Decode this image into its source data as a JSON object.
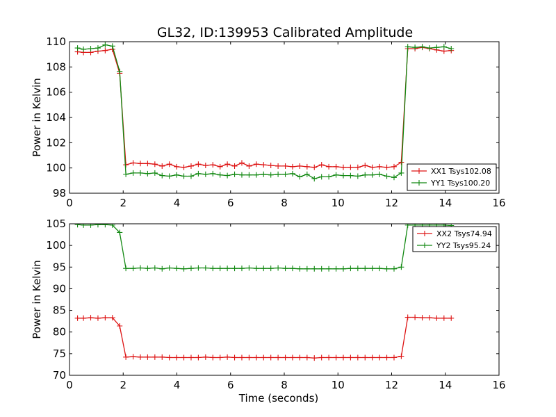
{
  "title": "GL32, ID:139953 Calibrated Amplitude",
  "colors": {
    "xx": "#dd1111",
    "yy": "#118811"
  },
  "chart_data": [
    {
      "type": "line",
      "xlabel": "",
      "ylabel": "Power in Kelvin",
      "xlim": [
        0,
        16
      ],
      "ylim": [
        98,
        110
      ],
      "xticks": [
        0,
        2,
        4,
        6,
        8,
        10,
        12,
        14,
        16
      ],
      "yticks": [
        98,
        100,
        102,
        104,
        106,
        108,
        110
      ],
      "legend_position": "lower-right",
      "series": [
        {
          "name": "XX1 Tsys102.08",
          "color_key": "xx",
          "x": [
            0.3,
            0.52,
            0.79,
            1.06,
            1.33,
            1.6,
            1.87,
            2.1,
            2.37,
            2.64,
            2.91,
            3.18,
            3.45,
            3.72,
            3.99,
            4.26,
            4.53,
            4.8,
            5.07,
            5.34,
            5.61,
            5.88,
            6.15,
            6.42,
            6.69,
            6.96,
            7.23,
            7.5,
            7.77,
            8.04,
            8.31,
            8.58,
            8.85,
            9.12,
            9.39,
            9.66,
            9.93,
            10.2,
            10.47,
            10.74,
            11.01,
            11.28,
            11.55,
            11.82,
            12.09,
            12.36,
            12.6,
            12.87,
            13.14,
            13.41,
            13.68,
            13.95,
            14.22
          ],
          "y": [
            109.2,
            109.15,
            109.15,
            109.25,
            109.3,
            109.4,
            107.5,
            100.25,
            100.4,
            100.35,
            100.35,
            100.3,
            100.15,
            100.3,
            100.1,
            100.05,
            100.15,
            100.3,
            100.2,
            100.25,
            100.1,
            100.3,
            100.15,
            100.4,
            100.15,
            100.3,
            100.25,
            100.2,
            100.15,
            100.15,
            100.1,
            100.15,
            100.1,
            100.05,
            100.25,
            100.1,
            100.1,
            100.05,
            100.05,
            100.05,
            100.2,
            100.05,
            100.1,
            100.05,
            100.1,
            100.45,
            109.45,
            109.45,
            109.55,
            109.45,
            109.35,
            109.25,
            109.3
          ]
        },
        {
          "name": "YY1 Tsys100.20",
          "color_key": "yy",
          "x": [
            0.3,
            0.52,
            0.79,
            1.06,
            1.33,
            1.6,
            1.87,
            2.1,
            2.37,
            2.64,
            2.91,
            3.18,
            3.45,
            3.72,
            3.99,
            4.26,
            4.53,
            4.8,
            5.07,
            5.34,
            5.61,
            5.88,
            6.15,
            6.42,
            6.69,
            6.96,
            7.23,
            7.5,
            7.77,
            8.04,
            8.31,
            8.58,
            8.85,
            9.12,
            9.39,
            9.66,
            9.93,
            10.2,
            10.47,
            10.74,
            11.01,
            11.28,
            11.55,
            11.82,
            12.09,
            12.36,
            12.6,
            12.87,
            13.14,
            13.41,
            13.68,
            13.95,
            14.22
          ],
          "y": [
            109.5,
            109.4,
            109.45,
            109.5,
            109.75,
            109.65,
            107.65,
            99.5,
            99.6,
            99.6,
            99.55,
            99.6,
            99.4,
            99.35,
            99.45,
            99.35,
            99.35,
            99.55,
            99.5,
            99.55,
            99.45,
            99.4,
            99.5,
            99.45,
            99.45,
            99.45,
            99.5,
            99.45,
            99.5,
            99.5,
            99.55,
            99.3,
            99.5,
            99.15,
            99.3,
            99.3,
            99.45,
            99.4,
            99.4,
            99.35,
            99.45,
            99.45,
            99.5,
            99.35,
            99.25,
            99.6,
            109.6,
            109.55,
            109.6,
            109.5,
            109.55,
            109.6,
            109.45
          ]
        }
      ]
    },
    {
      "type": "line",
      "xlabel": "Time (seconds)",
      "ylabel": "Power in Kelvin",
      "xlim": [
        0,
        16
      ],
      "ylim": [
        70,
        105
      ],
      "xticks": [
        0,
        2,
        4,
        6,
        8,
        10,
        12,
        14,
        16
      ],
      "yticks": [
        70,
        75,
        80,
        85,
        90,
        95,
        100,
        105
      ],
      "legend_position": "upper-right",
      "series": [
        {
          "name": "XX2 Tsys74.94",
          "color_key": "xx",
          "x": [
            0.3,
            0.52,
            0.79,
            1.06,
            1.33,
            1.6,
            1.87,
            2.1,
            2.37,
            2.64,
            2.91,
            3.18,
            3.45,
            3.72,
            3.99,
            4.26,
            4.53,
            4.8,
            5.07,
            5.34,
            5.61,
            5.88,
            6.15,
            6.42,
            6.69,
            6.96,
            7.23,
            7.5,
            7.77,
            8.04,
            8.31,
            8.58,
            8.85,
            9.12,
            9.39,
            9.66,
            9.93,
            10.2,
            10.47,
            10.74,
            11.01,
            11.28,
            11.55,
            11.82,
            12.09,
            12.36,
            12.6,
            12.87,
            13.14,
            13.41,
            13.68,
            13.95,
            14.22
          ],
          "y": [
            83.2,
            83.2,
            83.3,
            83.2,
            83.3,
            83.3,
            81.4,
            74.2,
            74.3,
            74.2,
            74.2,
            74.2,
            74.2,
            74.1,
            74.1,
            74.1,
            74.1,
            74.1,
            74.2,
            74.1,
            74.1,
            74.2,
            74.1,
            74.1,
            74.1,
            74.1,
            74.1,
            74.1,
            74.1,
            74.1,
            74.1,
            74.1,
            74.1,
            74.0,
            74.1,
            74.1,
            74.1,
            74.1,
            74.1,
            74.1,
            74.1,
            74.1,
            74.1,
            74.1,
            74.1,
            74.4,
            83.4,
            83.4,
            83.3,
            83.3,
            83.2,
            83.2,
            83.2
          ]
        },
        {
          "name": "YY2 Tsys95.24",
          "color_key": "yy",
          "x": [
            0.3,
            0.52,
            0.79,
            1.06,
            1.33,
            1.6,
            1.87,
            2.1,
            2.37,
            2.64,
            2.91,
            3.18,
            3.45,
            3.72,
            3.99,
            4.26,
            4.53,
            4.8,
            5.07,
            5.34,
            5.61,
            5.88,
            6.15,
            6.42,
            6.69,
            6.96,
            7.23,
            7.5,
            7.77,
            8.04,
            8.31,
            8.58,
            8.85,
            9.12,
            9.39,
            9.66,
            9.93,
            10.2,
            10.47,
            10.74,
            11.01,
            11.28,
            11.55,
            11.82,
            12.09,
            12.36,
            12.6,
            12.87,
            13.14,
            13.41,
            13.68,
            13.95,
            14.22
          ],
          "y": [
            104.8,
            104.7,
            104.7,
            104.8,
            104.8,
            104.7,
            103.0,
            94.7,
            94.7,
            94.8,
            94.7,
            94.8,
            94.6,
            94.8,
            94.7,
            94.6,
            94.7,
            94.8,
            94.8,
            94.7,
            94.7,
            94.7,
            94.7,
            94.7,
            94.8,
            94.7,
            94.7,
            94.7,
            94.8,
            94.7,
            94.7,
            94.6,
            94.6,
            94.6,
            94.6,
            94.6,
            94.6,
            94.6,
            94.7,
            94.7,
            94.7,
            94.7,
            94.7,
            94.6,
            94.6,
            95.0,
            104.7,
            104.7,
            104.7,
            104.7,
            104.7,
            104.7,
            104.6
          ]
        }
      ]
    }
  ]
}
